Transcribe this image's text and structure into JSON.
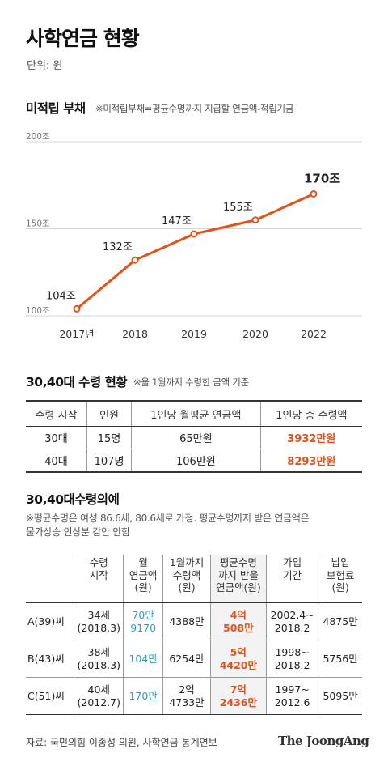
{
  "title": "사학연금 현황",
  "unit": "단위: 원",
  "colors": {
    "line": "#e2521b",
    "accent_orange": "#e2521b",
    "accent_cyan": "#1ba6c6"
  },
  "chart_section": {
    "title": "미적립 부채",
    "note": "※미적립부채=평균수명까지 지급할 연금액-적립기금"
  },
  "chart_data": {
    "type": "line",
    "title": "미적립 부채",
    "categories": [
      "2017년",
      "2018",
      "2019",
      "2020",
      "2022"
    ],
    "values": [
      104,
      132,
      147,
      155,
      170
    ],
    "data_labels": [
      "104조",
      "132조",
      "147조",
      "155조",
      "170조"
    ],
    "ylim": [
      100,
      200
    ],
    "yticks": [
      100,
      150,
      200
    ],
    "ytick_labels": [
      "100조",
      "150조",
      "200조"
    ],
    "grid": true,
    "xlabel": "",
    "ylabel": ""
  },
  "table1": {
    "title": "30,40대 수령 현황",
    "note": "※올 1월까지 수령한 금액 기준",
    "headers": [
      "수령 시작",
      "인원",
      "1인당 월평균 연금액",
      "1인당 총 수령액"
    ],
    "rows": [
      [
        "30대",
        "15명",
        "65만원",
        "3932만원"
      ],
      [
        "40대",
        "107명",
        "106만원",
        "8293만원"
      ]
    ]
  },
  "table2": {
    "title": "30,40대수령의예",
    "note": "※평균수명은 여성 86.6세, 80.6세로 가정. 평균수명까지 받은 연금액은\n물가상승 인상분 감안 안함",
    "headers": [
      "",
      "수령\n시작",
      "월\n연금액\n(원)",
      "1월까지\n수령액\n(원)",
      "평균수명\n까지 받을\n연금액(원)",
      "가입\n기간",
      "납입\n보험료\n(원)"
    ],
    "rows": [
      [
        "A(39)씨",
        "34세\n(2018.3)",
        "70만\n9170",
        "4388만",
        "4억\n508만",
        "2002.4~\n2018.2",
        "4875만"
      ],
      [
        "B(43)씨",
        "38세\n(2018.3)",
        "104만",
        "6254만",
        "5억\n4420만",
        "1998~\n2018.2",
        "5756만"
      ],
      [
        "C(51)씨",
        "40세\n(2012.7)",
        "170만",
        "2억\n4733만",
        "7억\n2436만",
        "1997~\n2012.6",
        "5095만"
      ]
    ]
  },
  "source": "자료: 국민의힘 이종성 의원, 사학연금 통계연보",
  "brand": "The JoongAng"
}
